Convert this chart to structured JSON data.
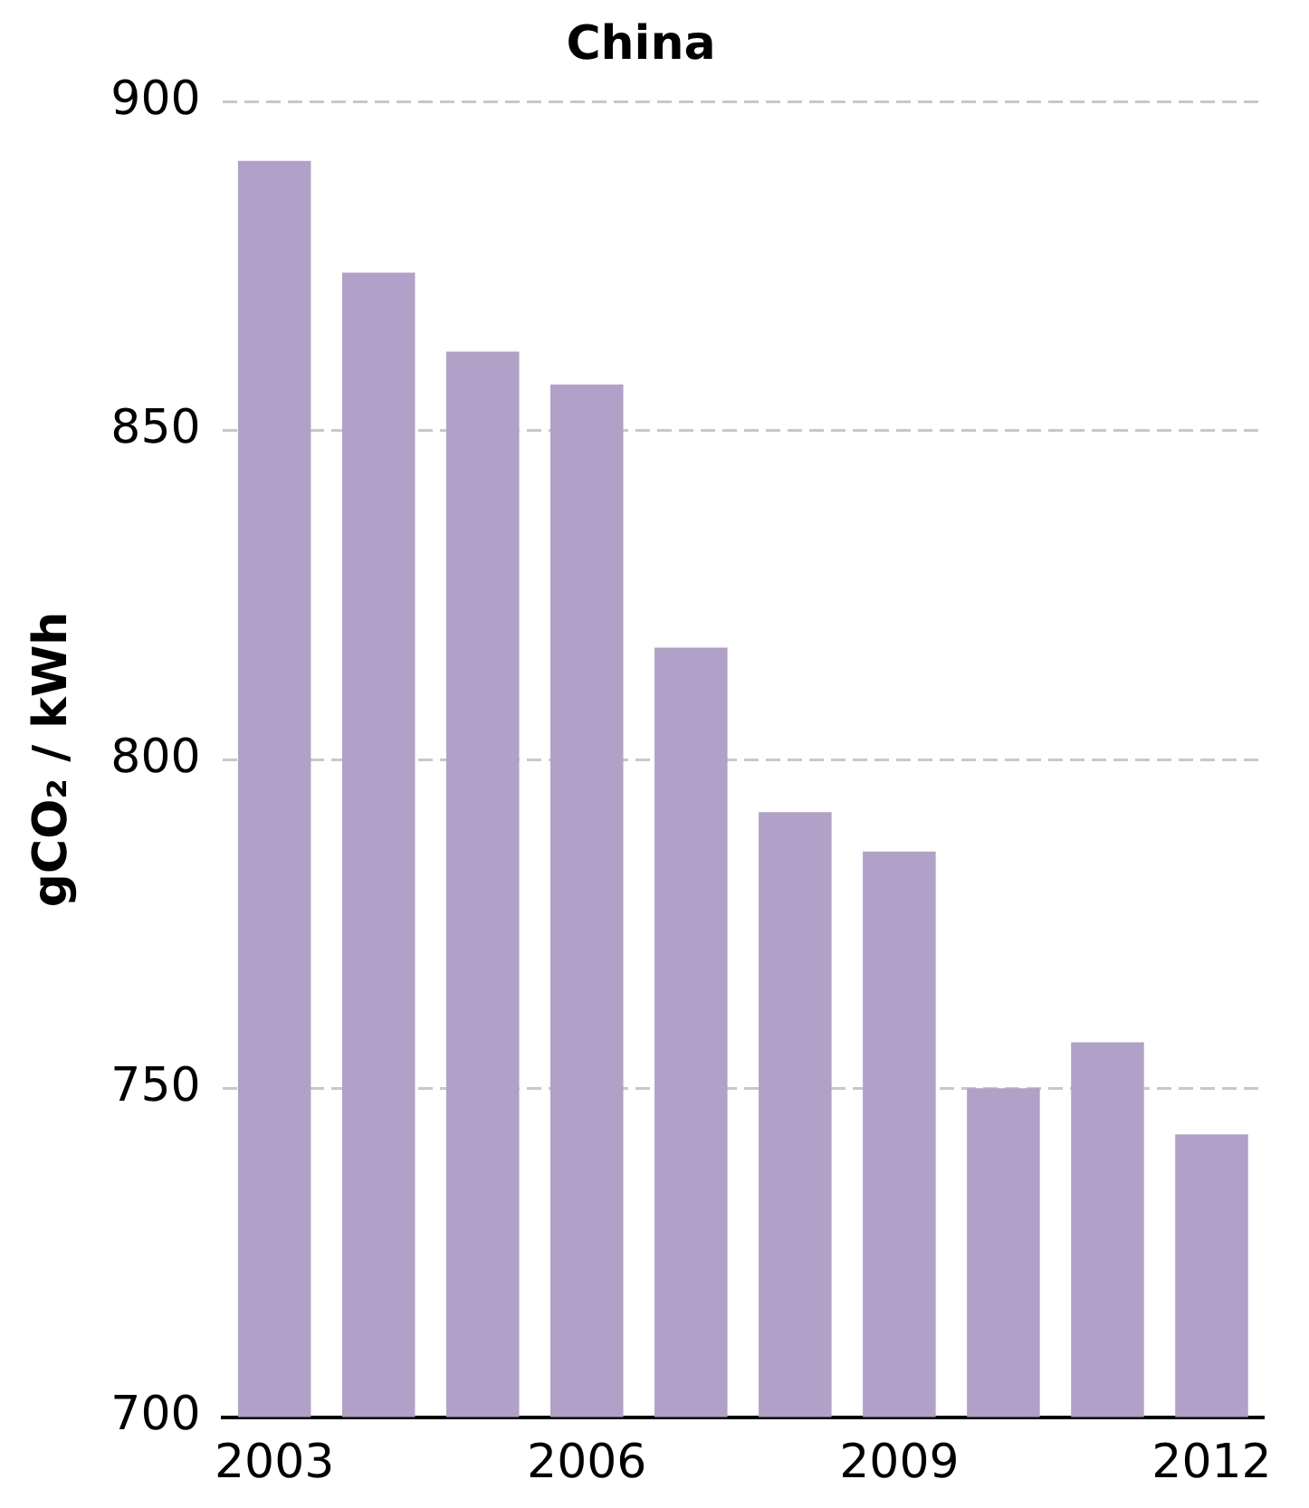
{
  "chart_data": {
    "type": "bar",
    "title": "China",
    "ylabel": "gCO₂ / kWh",
    "categories": [
      "2003",
      null,
      null,
      "2006",
      null,
      null,
      "2009",
      null,
      null,
      "2012"
    ],
    "values": [
      891,
      874,
      862,
      857,
      817,
      792,
      786,
      750,
      757,
      743
    ],
    "color": "#b1a0c7",
    "ylim": [
      700,
      900
    ],
    "yticks": [
      700,
      750,
      800,
      850,
      900
    ],
    "grid": "y",
    "legend": false
  }
}
